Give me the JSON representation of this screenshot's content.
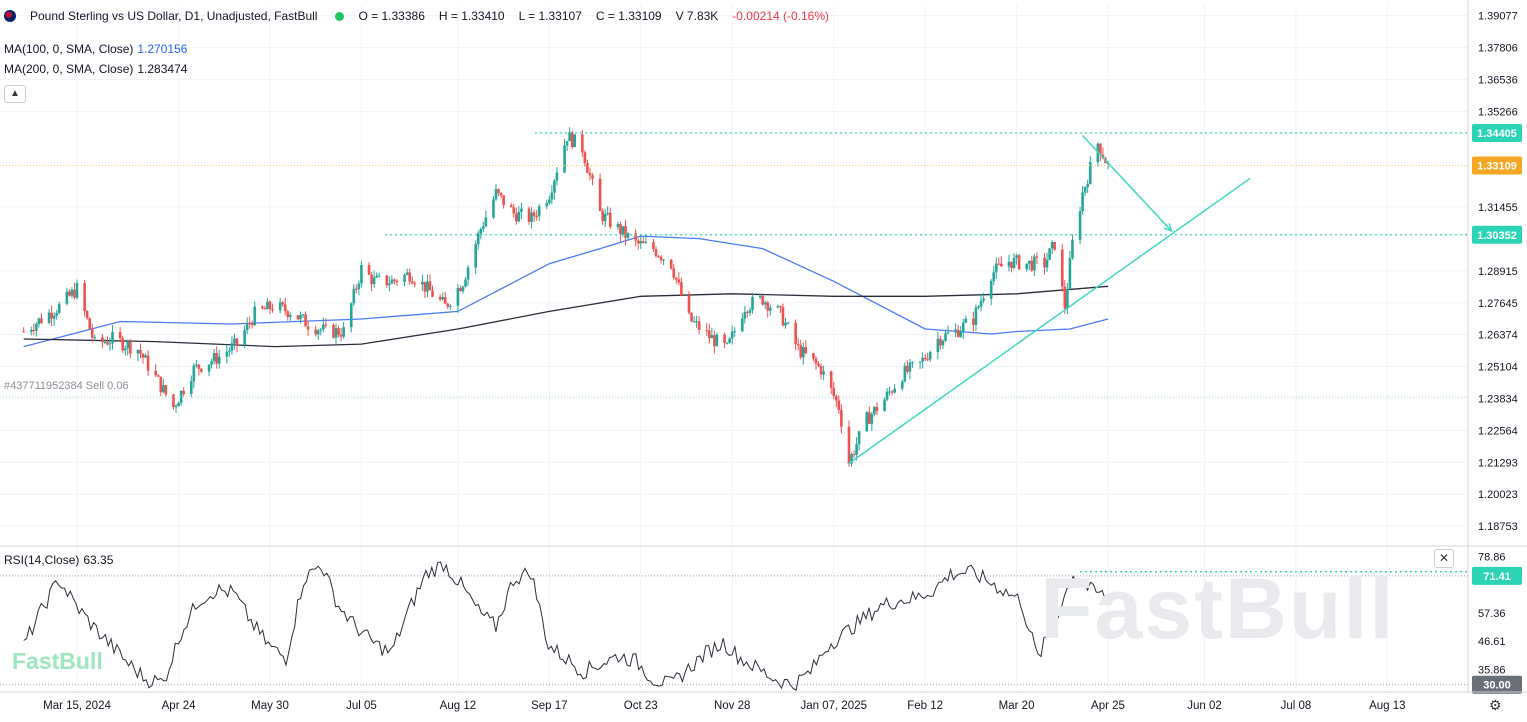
{
  "header": {
    "title": "Pound Sterling vs US Dollar, D1, Unadjusted, FastBull",
    "ohlc": {
      "open": "O = 1.33386",
      "high": "H = 1.33410",
      "low": "L = 1.33107",
      "close": "C = 1.33109",
      "volume": "V 7.83K",
      "change": "-0.00214 (-0.16%)"
    }
  },
  "indicators": {
    "ma100": {
      "label": "MA(100, 0, SMA, Close)",
      "value": "1.270156",
      "color": "#2962ff"
    },
    "ma200": {
      "label": "MA(200, 0, SMA, Close)",
      "value": "1.283474",
      "color": "#131722"
    },
    "rsi": {
      "label": "RSI(14,Close)",
      "value": "63.35"
    }
  },
  "order_line": {
    "label": "#437711952384 Sell 0.06"
  },
  "price_badges": {
    "resistance": "1.34405",
    "current": "1.33109",
    "support": "1.30352",
    "rsi_level": "71.41",
    "rsi_low": "30.00"
  },
  "watermark": "FastBull",
  "logo_text": "FastBull",
  "colors": {
    "up": "#26a69a",
    "down": "#ef5350",
    "ma100": "#4a7bf7",
    "ma200": "#2a2e39",
    "trend": "#3ed9c0",
    "current_badge": "#f5a623",
    "level_badge": "#2ad4b5",
    "rsi_low_badge": "#6b6f78"
  },
  "chart_data": {
    "type": "candlestick",
    "title": "Pound Sterling vs US Dollar, D1, Unadjusted, FastBull",
    "price_axis": {
      "ticks": [
        "1.39077",
        "1.37806",
        "1.36536",
        "1.35266",
        "1.31455",
        "1.28915",
        "1.27645",
        "1.26374",
        "1.25104",
        "1.23834",
        "1.22564",
        "1.21293",
        "1.20023",
        "1.18753"
      ],
      "range": [
        1.18,
        1.395
      ]
    },
    "time_axis": {
      "ticks": [
        "Mar 15, 2024",
        "Apr 24",
        "May 30",
        "Jul 05",
        "Aug 12",
        "Sep 17",
        "Oct 23",
        "Nov 28",
        "Jan 07, 2025",
        "Feb 12",
        "Mar 20",
        "Apr 25",
        "Jun 02",
        "Jul 08",
        "Aug 13"
      ]
    },
    "levels": {
      "resistance": 1.34405,
      "current": 1.33109,
      "support": 1.30352,
      "order_level": 1.239
    },
    "trendline": {
      "from": [
        "Jan 13, 2025",
        1.2125
      ],
      "to": [
        "Jun 20, 2025",
        1.326
      ]
    },
    "projection_arrow": {
      "from": [
        "Apr 15, 2025",
        1.343
      ],
      "to": [
        "May 20, 2025",
        1.305
      ]
    },
    "price_series": {
      "name": "GBPUSD Close (approx.)",
      "dates": [
        "2024-02-23",
        "2024-03-08",
        "2024-03-15",
        "2024-03-22",
        "2024-03-29",
        "2024-04-08",
        "2024-04-16",
        "2024-04-22",
        "2024-04-30",
        "2024-05-10",
        "2024-05-17",
        "2024-05-24",
        "2024-05-31",
        "2024-06-07",
        "2024-06-14",
        "2024-06-21",
        "2024-06-28",
        "2024-07-05",
        "2024-07-10",
        "2024-07-17",
        "2024-07-24",
        "2024-07-31",
        "2024-08-07",
        "2024-08-14",
        "2024-08-21",
        "2024-08-27",
        "2024-09-03",
        "2024-09-10",
        "2024-09-17",
        "2024-09-24",
        "2024-09-30",
        "2024-10-07",
        "2024-10-14",
        "2024-10-21",
        "2024-10-28",
        "2024-11-04",
        "2024-11-11",
        "2024-11-19",
        "2024-11-26",
        "2024-12-03",
        "2024-12-10",
        "2024-12-17",
        "2024-12-24",
        "2025-01-02",
        "2025-01-09",
        "2025-01-13",
        "2025-01-20",
        "2025-01-27",
        "2025-02-03",
        "2025-02-10",
        "2025-02-17",
        "2025-02-24",
        "2025-03-03",
        "2025-03-10",
        "2025-03-17",
        "2025-03-24",
        "2025-03-31",
        "2025-04-04",
        "2025-04-08",
        "2025-04-11",
        "2025-04-15",
        "2025-04-21",
        "2025-04-25"
      ],
      "close": [
        1.265,
        1.275,
        1.282,
        1.26,
        1.262,
        1.258,
        1.245,
        1.235,
        1.25,
        1.255,
        1.26,
        1.272,
        1.275,
        1.273,
        1.268,
        1.265,
        1.265,
        1.29,
        1.285,
        1.285,
        1.288,
        1.282,
        1.275,
        1.285,
        1.306,
        1.32,
        1.312,
        1.31,
        1.32,
        1.343,
        1.338,
        1.312,
        1.306,
        1.3,
        1.298,
        1.292,
        1.27,
        1.263,
        1.258,
        1.275,
        1.278,
        1.272,
        1.258,
        1.25,
        1.235,
        1.213,
        1.23,
        1.238,
        1.248,
        1.252,
        1.262,
        1.265,
        1.27,
        1.288,
        1.293,
        1.292,
        1.292,
        1.3,
        1.275,
        1.3,
        1.32,
        1.34,
        1.331
      ]
    },
    "ma100_series": {
      "name": "MA(100, 0, SMA, Close)",
      "dates": [
        "2024-02-23",
        "2024-04-01",
        "2024-05-15",
        "2024-07-05",
        "2024-08-12",
        "2024-09-17",
        "2024-10-07",
        "2024-10-23",
        "2024-11-15",
        "2024-12-10",
        "2025-01-07",
        "2025-02-12",
        "2025-03-10",
        "2025-03-20",
        "2025-04-10",
        "2025-04-25"
      ],
      "values": [
        1.259,
        1.269,
        1.268,
        1.27,
        1.273,
        1.292,
        1.298,
        1.303,
        1.302,
        1.298,
        1.285,
        1.266,
        1.264,
        1.265,
        1.266,
        1.27
      ]
    },
    "ma200_series": {
      "name": "MA(200, 0, SMA, Close)",
      "dates": [
        "2024-02-23",
        "2024-04-15",
        "2024-06-01",
        "2024-07-05",
        "2024-08-12",
        "2024-09-17",
        "2024-10-23",
        "2024-11-28",
        "2025-01-07",
        "2025-02-12",
        "2025-03-20",
        "2025-04-25"
      ],
      "values": [
        1.262,
        1.261,
        1.259,
        1.26,
        1.266,
        1.273,
        1.279,
        1.28,
        1.279,
        1.279,
        1.28,
        1.283
      ]
    },
    "rsi": {
      "name": "RSI(14,Close)",
      "ticks": [
        "78.86",
        "57.36",
        "46.61",
        "35.86"
      ],
      "range": [
        28,
        82
      ],
      "levels": {
        "upper": 71.41,
        "lower": 30.0
      },
      "values": [
        45,
        58,
        70,
        60,
        52,
        45,
        38,
        32,
        31,
        50,
        62,
        66,
        65,
        54,
        45,
        40,
        70,
        76,
        60,
        52,
        46,
        42,
        58,
        72,
        76,
        68,
        58,
        52,
        70,
        73,
        45,
        40,
        35,
        38,
        41,
        39,
        32,
        30,
        36,
        42,
        46,
        40,
        36,
        32,
        30,
        35,
        45,
        50,
        55,
        60,
        62,
        63,
        66,
        72,
        73,
        70,
        66,
        62,
        40,
        55,
        72,
        66,
        63.35
      ]
    }
  }
}
